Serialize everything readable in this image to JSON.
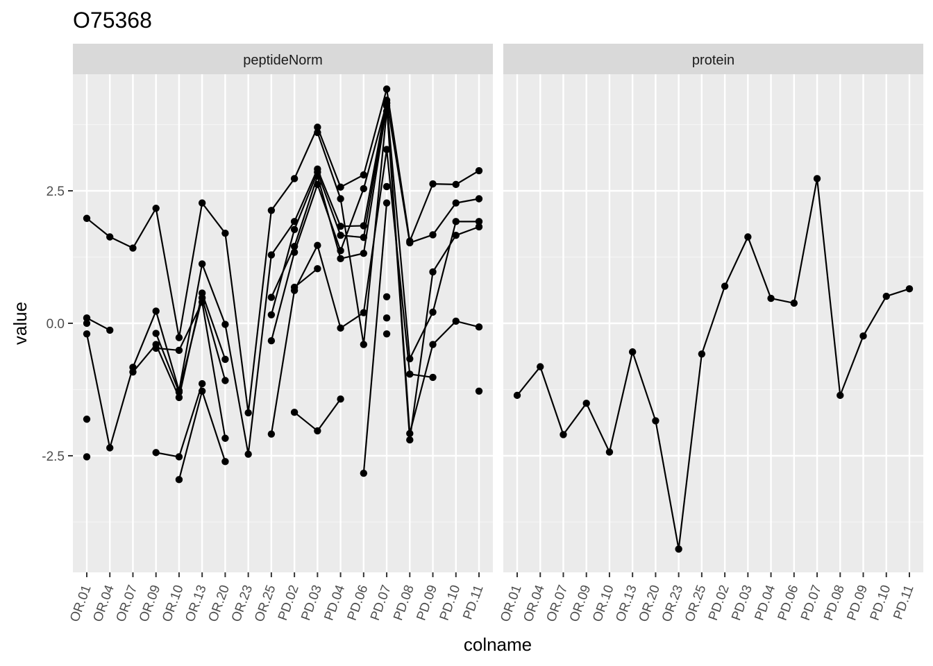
{
  "chart_data": {
    "type": "line",
    "title": "O75368",
    "xlabel": "colname",
    "ylabel": "value",
    "ylim": [
      -4.7,
      4.7
    ],
    "y_ticks": [
      2.5,
      0.0,
      -2.5
    ],
    "y_tick_labels": [
      "2.5",
      "0.0",
      "-2.5"
    ],
    "grid": true,
    "categories": [
      "OR.01",
      "OR.04",
      "OR.07",
      "OR.09",
      "OR.10",
      "OR.13",
      "OR.20",
      "OR.23",
      "OR.25",
      "PD.02",
      "PD.03",
      "PD.04",
      "PD.06",
      "PD.07",
      "PD.08",
      "PD.09",
      "PD.10",
      "PD.11"
    ],
    "panels": [
      {
        "label": "peptideNorm",
        "series": [
          {
            "values": [
              1.98,
              1.63,
              1.42,
              2.17,
              -0.27,
              2.27,
              1.7,
              -1.69,
              2.13,
              2.73,
              3.7,
              2.57,
              2.8,
              4.42,
              1.55,
              2.63,
              2.62,
              2.88
            ]
          },
          {
            "values": [
              -0.2,
              -2.35,
              -0.83,
              0.23,
              -1.27,
              1.12,
              -0.02,
              -2.47,
              1.29,
              1.92,
              2.91,
              1.83,
              1.84,
              4.21,
              1.52,
              1.67,
              2.27,
              2.35
            ]
          },
          {
            "values": [
              -1.81,
              null,
              -0.92,
              -0.4,
              -1.4,
              0.57,
              -0.68,
              null,
              0.16,
              1.77,
              2.85,
              1.66,
              1.62,
              4.15,
              -2.08,
              -0.4,
              0.04,
              -0.07
            ]
          },
          {
            "values": [
              -2.52,
              null,
              null,
              -0.19,
              -1.3,
              0.48,
              -1.08,
              null,
              0.49,
              1.45,
              2.78,
              1.22,
              1.32,
              4.1,
              -2.2,
              0.97,
              1.66,
              1.82
            ]
          },
          {
            "values": [
              null,
              null,
              null,
              -0.47,
              -0.51,
              0.4,
              -2.17,
              null,
              -0.33,
              1.34,
              2.62,
              1.37,
              2.54,
              4.16,
              -0.67,
              0.21,
              1.92,
              1.92
            ]
          },
          {
            "values": [
              null,
              null,
              null,
              -2.44,
              -2.52,
              -1.14,
              null,
              null,
              -2.09,
              0.62,
              1.47,
              -0.09,
              0.2,
              3.28,
              -0.96,
              -1.02,
              null,
              null
            ]
          },
          {
            "values": [
              null,
              null,
              null,
              null,
              -2.95,
              -1.28,
              -2.61,
              null,
              null,
              0.68,
              1.03,
              null,
              -2.83,
              2.27,
              null,
              null,
              null,
              null
            ]
          },
          {
            "values": [
              null,
              null,
              null,
              null,
              null,
              null,
              null,
              null,
              null,
              null,
              3.6,
              2.35,
              -0.4,
              4.0,
              null,
              null,
              null,
              null
            ]
          },
          {
            "values": [
              0.1,
              -0.13,
              null,
              null,
              null,
              null,
              null,
              null,
              null,
              -1.68,
              -2.03,
              -1.43,
              null,
              2.58,
              null,
              null,
              null,
              -1.28
            ]
          },
          {
            "values": [
              0.0,
              null,
              null,
              null,
              null,
              null,
              null,
              null,
              null,
              null,
              null,
              null,
              null,
              0.5,
              null,
              null,
              null,
              null
            ]
          },
          {
            "values": [
              null,
              null,
              null,
              null,
              null,
              null,
              null,
              null,
              null,
              null,
              null,
              null,
              null,
              0.1,
              null,
              null,
              null,
              null
            ]
          },
          {
            "values": [
              null,
              null,
              null,
              null,
              null,
              null,
              null,
              null,
              null,
              null,
              null,
              null,
              null,
              -0.2,
              null,
              null,
              null,
              null
            ]
          }
        ]
      },
      {
        "label": "protein",
        "series": [
          {
            "values": [
              -1.36,
              -0.82,
              -2.1,
              -1.51,
              -2.43,
              -0.54,
              -1.84,
              -4.26,
              -0.58,
              0.7,
              1.63,
              0.47,
              0.38,
              2.73,
              -1.36,
              -0.24,
              0.51,
              0.65
            ]
          }
        ]
      }
    ]
  }
}
